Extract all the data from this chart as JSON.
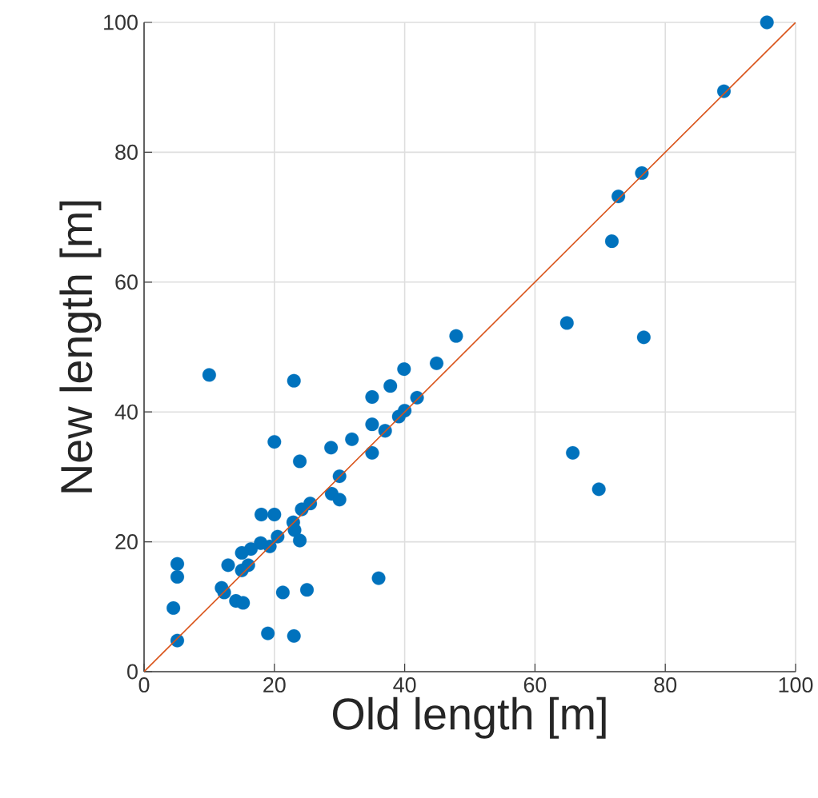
{
  "chart_data": {
    "type": "scatter",
    "xlabel": "Old length [m]",
    "ylabel": "New length [m]",
    "xlim": [
      0,
      100
    ],
    "ylim": [
      0,
      100
    ],
    "xticks": [
      0,
      20,
      40,
      60,
      80,
      100
    ],
    "yticks": [
      0,
      20,
      40,
      60,
      80,
      100
    ],
    "grid": true,
    "series": [
      {
        "color": "#0072bd",
        "marker": "circle",
        "x": [
          95.6,
          89,
          76.4,
          72.8,
          71.8,
          47.9,
          64.9,
          76.7,
          65.8,
          69.8,
          44.9,
          39.9,
          37.8,
          41.9,
          35.0,
          10.0,
          23.0,
          40.0,
          39.1,
          35.0,
          37.0,
          31.9,
          28.7,
          20.0,
          35.0,
          23.9,
          30.0,
          28.8,
          30.0,
          25.5,
          24.2,
          18.0,
          20.0,
          22.9,
          23.1,
          23.9,
          20.5,
          19.3,
          17.9,
          16.4,
          15.0,
          16.0,
          15.0,
          12.9,
          5.1,
          5.1,
          36.0,
          11.9,
          12.3,
          21.3,
          25.0,
          14.1,
          15.2,
          4.5,
          19.0,
          23.0,
          5.1
        ],
        "values": [
          100,
          89.4,
          76.8,
          73.2,
          66.3,
          51.7,
          53.7,
          51.5,
          33.7,
          28.1,
          47.5,
          46.6,
          44.0,
          42.2,
          42.3,
          45.7,
          44.8,
          40.2,
          39.3,
          38.1,
          37.1,
          35.8,
          34.5,
          35.4,
          33.7,
          32.4,
          30.1,
          27.4,
          26.5,
          25.9,
          25.0,
          24.2,
          24.2,
          23.0,
          21.8,
          20.2,
          20.8,
          19.3,
          19.8,
          18.9,
          18.3,
          16.4,
          15.6,
          16.4,
          16.6,
          14.6,
          14.4,
          12.9,
          12.2,
          12.2,
          12.6,
          10.9,
          10.6,
          9.8,
          5.9,
          5.5,
          4.8
        ]
      },
      {
        "type": "line",
        "color": "#d95319",
        "line_style": "solid",
        "marker": "none",
        "x": [
          0,
          100
        ],
        "values": [
          0,
          100
        ]
      }
    ]
  }
}
